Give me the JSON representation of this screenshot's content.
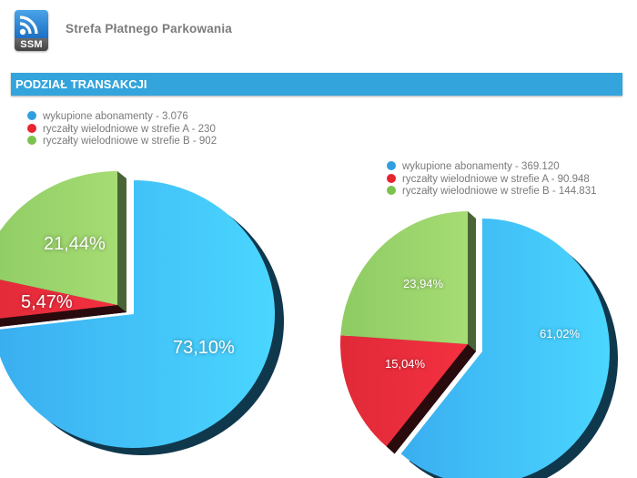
{
  "header": {
    "logo_text": "SSM",
    "app_title": "Strefa Płatnego Parkowania"
  },
  "section": {
    "title": "PODZIAŁ TRANSAKCJI"
  },
  "colors": {
    "blue": "#42b8f2",
    "red": "#ec2a3a",
    "green": "#9bd26a",
    "legend_blue": "#2f9fe0",
    "legend_red": "#e8242f",
    "legend_green": "#7cc24f",
    "section_bar": "#33a4dc"
  },
  "legends": [
    {
      "items": [
        {
          "label": "wykupione abonamenty - 3.076"
        },
        {
          "label": "ryczałty wielodniowe w strefie A - 230"
        },
        {
          "label": "ryczałty wielodniowe w strefie B - 902"
        }
      ]
    },
    {
      "items": [
        {
          "label": "wykupione abonamenty - 369.120"
        },
        {
          "label": "ryczałty wielodniowe w strefie A - 90.948"
        },
        {
          "label": "ryczałty wielodniowe w strefie B - 144.831"
        }
      ]
    }
  ],
  "chart_data": [
    {
      "type": "pie",
      "title": "",
      "categories": [
        "wykupione abonamenty",
        "ryczałty wielodniowe w strefie A",
        "ryczałty wielodniowe w strefie B"
      ],
      "values": [
        3076,
        230,
        902
      ],
      "percent_labels": [
        "73,10%",
        "5,47%",
        "21,44%"
      ],
      "percents": [
        73.1,
        5.47,
        21.44
      ],
      "legend_position": "top-left",
      "style": "3d-exploded"
    },
    {
      "type": "pie",
      "title": "",
      "categories": [
        "wykupione abonamenty",
        "ryczałty wielodniowe w strefie A",
        "ryczałty wielodniowe w strefie B"
      ],
      "values": [
        369120,
        90948,
        144831
      ],
      "percent_labels": [
        "61,02%",
        "15,04%",
        "23,94%"
      ],
      "percents": [
        61.02,
        15.04,
        23.94
      ],
      "legend_position": "top-left",
      "style": "3d-exploded"
    }
  ]
}
